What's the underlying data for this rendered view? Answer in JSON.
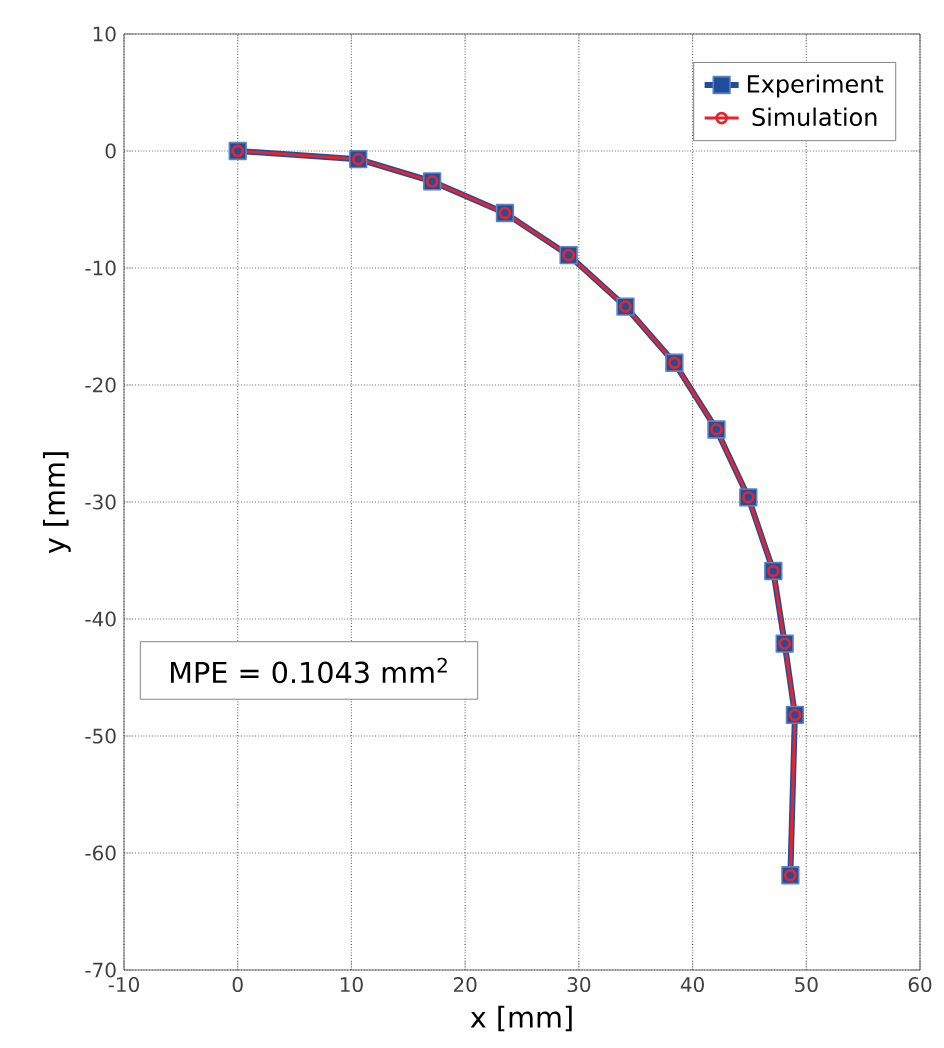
{
  "chart_data": {
    "type": "line",
    "xlabel": "x [mm]",
    "ylabel": "y [mm]",
    "xlim": [
      -10,
      60
    ],
    "ylim": [
      -70,
      10
    ],
    "xticks": [
      -10,
      0,
      10,
      20,
      30,
      40,
      50,
      60
    ],
    "yticks": [
      -70,
      -60,
      -50,
      -40,
      -30,
      -20,
      -10,
      0,
      10
    ],
    "grid": true,
    "legend": "top right",
    "x": [
      0,
      10.6,
      17.1,
      23.5,
      29.1,
      34.1,
      38.4,
      42.1,
      44.9,
      47.1,
      48.1,
      49.0,
      48.6
    ],
    "series": [
      {
        "name": "Experiment",
        "color": "#1f4e9c",
        "marker": "square",
        "values": [
          0,
          -0.7,
          -2.6,
          -5.3,
          -8.9,
          -13.3,
          -18.1,
          -23.8,
          -29.6,
          -35.9,
          -42.1,
          -48.2,
          -61.9
        ]
      },
      {
        "name": "Simulation",
        "color": "#e8232b",
        "marker": "circle",
        "values": [
          0,
          -0.7,
          -2.6,
          -5.3,
          -8.9,
          -13.3,
          -18.1,
          -23.8,
          -29.6,
          -35.9,
          -42.1,
          -48.2,
          -61.9
        ]
      }
    ],
    "annotations": [
      "MPE = 0.1043 mm$^{2}$"
    ]
  }
}
